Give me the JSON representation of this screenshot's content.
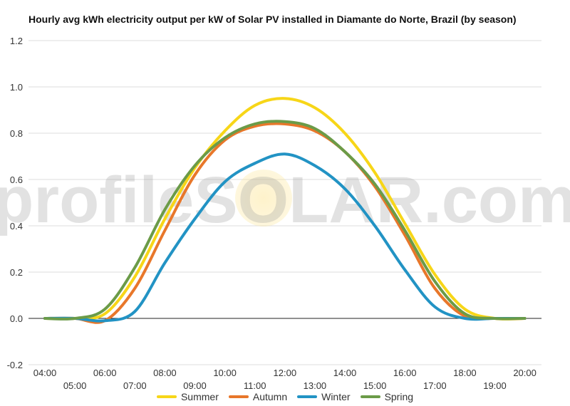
{
  "chart_data": {
    "type": "line",
    "title": "Hourly avg kWh electricity output per kW of Solar PV installed in Diamante do Norte, Brazil (by season)",
    "xlabel": "",
    "ylabel": "",
    "x": [
      "04:00",
      "05:00",
      "06:00",
      "07:00",
      "08:00",
      "09:00",
      "10:00",
      "11:00",
      "12:00",
      "13:00",
      "14:00",
      "15:00",
      "16:00",
      "17:00",
      "18:00",
      "19:00",
      "20:00"
    ],
    "x_tick_labels_upper": [
      "04:00",
      "06:00",
      "08:00",
      "10:00",
      "12:00",
      "14:00",
      "16:00",
      "18:00",
      "20:00"
    ],
    "x_tick_labels_lower": [
      "05:00",
      "07:00",
      "09:00",
      "11:00",
      "13:00",
      "15:00",
      "17:00",
      "19:00"
    ],
    "ylim": [
      -0.2,
      1.2
    ],
    "y_ticks": [
      "-0.2",
      "0.0",
      "0.2",
      "0.4",
      "0.6",
      "0.8",
      "1.0",
      "1.2"
    ],
    "y_tick_values": [
      -0.2,
      0.0,
      0.2,
      0.4,
      0.6,
      0.8,
      1.0,
      1.2
    ],
    "grid": true,
    "legend_position": "bottom",
    "series": [
      {
        "name": "Summer",
        "color": "#f7d618",
        "values": [
          0.0,
          0.0,
          0.02,
          0.18,
          0.43,
          0.65,
          0.81,
          0.92,
          0.95,
          0.91,
          0.8,
          0.63,
          0.41,
          0.19,
          0.04,
          0.0,
          0.0
        ]
      },
      {
        "name": "Autumn",
        "color": "#e8772a",
        "values": [
          0.0,
          0.0,
          -0.01,
          0.13,
          0.38,
          0.62,
          0.77,
          0.83,
          0.84,
          0.81,
          0.72,
          0.57,
          0.36,
          0.13,
          0.01,
          0.0,
          0.0
        ]
      },
      {
        "name": "Winter",
        "color": "#2293c4",
        "values": [
          0.0,
          0.0,
          -0.01,
          0.03,
          0.24,
          0.43,
          0.59,
          0.67,
          0.71,
          0.66,
          0.56,
          0.4,
          0.21,
          0.05,
          0.0,
          0.0,
          0.0
        ]
      },
      {
        "name": "Spring",
        "color": "#6b9b48",
        "values": [
          0.0,
          0.0,
          0.04,
          0.22,
          0.47,
          0.66,
          0.78,
          0.84,
          0.85,
          0.82,
          0.72,
          0.58,
          0.38,
          0.16,
          0.02,
          0.0,
          0.0
        ]
      }
    ],
    "watermark": "profileSOLAR.com"
  }
}
